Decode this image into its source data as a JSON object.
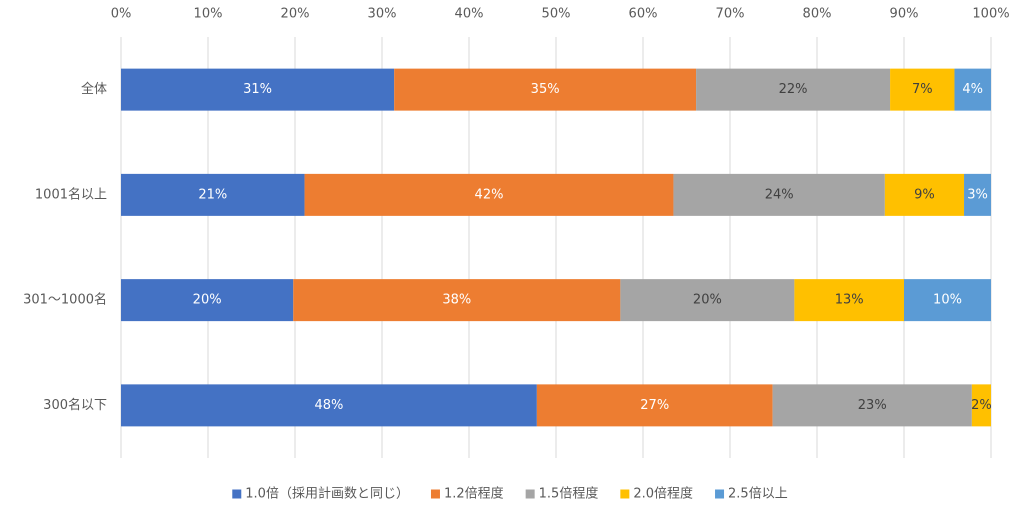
{
  "chart_data": {
    "type": "stacked_barh",
    "categories": [
      "全体",
      "1001名以上",
      "301～1000名",
      "300名以下"
    ],
    "series": [
      {
        "name": "1.0倍（採用計画数と同じ）",
        "color": "#4472c4",
        "values": [
          31.4,
          21.1,
          19.8,
          47.8
        ],
        "value_labels": [
          "31%",
          "21%",
          "20%",
          "48%"
        ]
      },
      {
        "name": "1.2倍程度",
        "color": "#ed7d31",
        "values": [
          34.7,
          42.4,
          37.6,
          27.1
        ],
        "value_labels": [
          "35%",
          "42%",
          "38%",
          "27%"
        ]
      },
      {
        "name": "1.5倍程度",
        "color": "#a5a5a5",
        "values": [
          22.3,
          24.3,
          20.0,
          22.9
        ],
        "value_labels": [
          "22%",
          "24%",
          "20%",
          "23%"
        ]
      },
      {
        "name": "2.0倍程度",
        "color": "#ffc000",
        "values": [
          7.4,
          9.1,
          12.6,
          2.2
        ],
        "value_labels": [
          "7%",
          "9%",
          "13%",
          "2%"
        ]
      },
      {
        "name": "2.5倍以上",
        "color": "#5b9bd5",
        "values": [
          4.2,
          3.1,
          10.0,
          null
        ],
        "value_labels": [
          "4%",
          "3%",
          "10%",
          null
        ]
      }
    ],
    "xlim": [
      0,
      100
    ],
    "xticks": [
      {
        "value": 0,
        "label": "0%"
      },
      {
        "value": 10,
        "label": "10%"
      },
      {
        "value": 20,
        "label": "20%"
      },
      {
        "value": 30,
        "label": "30%"
      },
      {
        "value": 40,
        "label": "40%"
      },
      {
        "value": 50,
        "label": "50%"
      },
      {
        "value": 60,
        "label": "60%"
      },
      {
        "value": 70,
        "label": "70%"
      },
      {
        "value": 80,
        "label": "80%"
      },
      {
        "value": 90,
        "label": "90%"
      },
      {
        "value": 100,
        "label": "100%"
      }
    ],
    "grid": true,
    "legend": "bottom"
  }
}
